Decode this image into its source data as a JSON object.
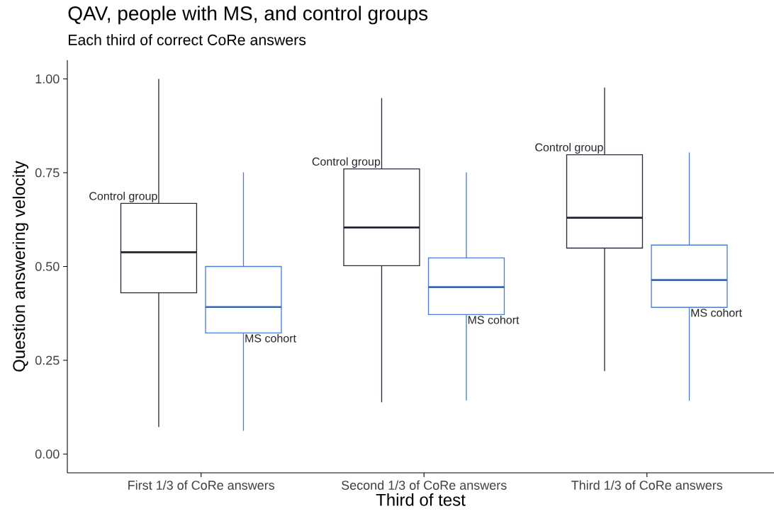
{
  "chart_data": {
    "type": "box",
    "title": "QAV, people with MS, and control groups",
    "subtitle": "Each third of correct CoRe answers",
    "xlabel": "Third of test",
    "ylabel": "Question answering velocity",
    "categories": [
      "First 1/3 of CoRe answers",
      "Second 1/3 of CoRe answers",
      "Third 1/3 of CoRe answers"
    ],
    "ylim": [
      -0.05,
      1.05
    ],
    "yticks": [
      {
        "value": 0,
        "label": "0.00"
      },
      {
        "value": 0.25,
        "label": "0.25"
      },
      {
        "value": 0.5,
        "label": "0.50"
      },
      {
        "value": 0.75,
        "label": "0.75"
      },
      {
        "value": 1,
        "label": "1.00"
      }
    ],
    "series": [
      {
        "name": "Control group",
        "color": "#2b2b3b",
        "boxes": [
          {
            "low": 0.072,
            "q1": 0.43,
            "median": 0.538,
            "q3": 0.668,
            "high": 1.0
          },
          {
            "low": 0.138,
            "q1": 0.502,
            "median": 0.604,
            "q3": 0.76,
            "high": 0.949
          },
          {
            "low": 0.221,
            "q1": 0.549,
            "median": 0.63,
            "q3": 0.798,
            "high": 0.977
          }
        ]
      },
      {
        "name": "MS cohort",
        "color": "#4a7fd6",
        "boxes": [
          {
            "low": 0.062,
            "q1": 0.323,
            "median": 0.392,
            "q3": 0.5,
            "high": 0.751
          },
          {
            "low": 0.143,
            "q1": 0.372,
            "median": 0.445,
            "q3": 0.523,
            "high": 0.751
          },
          {
            "low": 0.142,
            "q1": 0.391,
            "median": 0.464,
            "q3": 0.557,
            "high": 0.804
          }
        ]
      }
    ]
  }
}
